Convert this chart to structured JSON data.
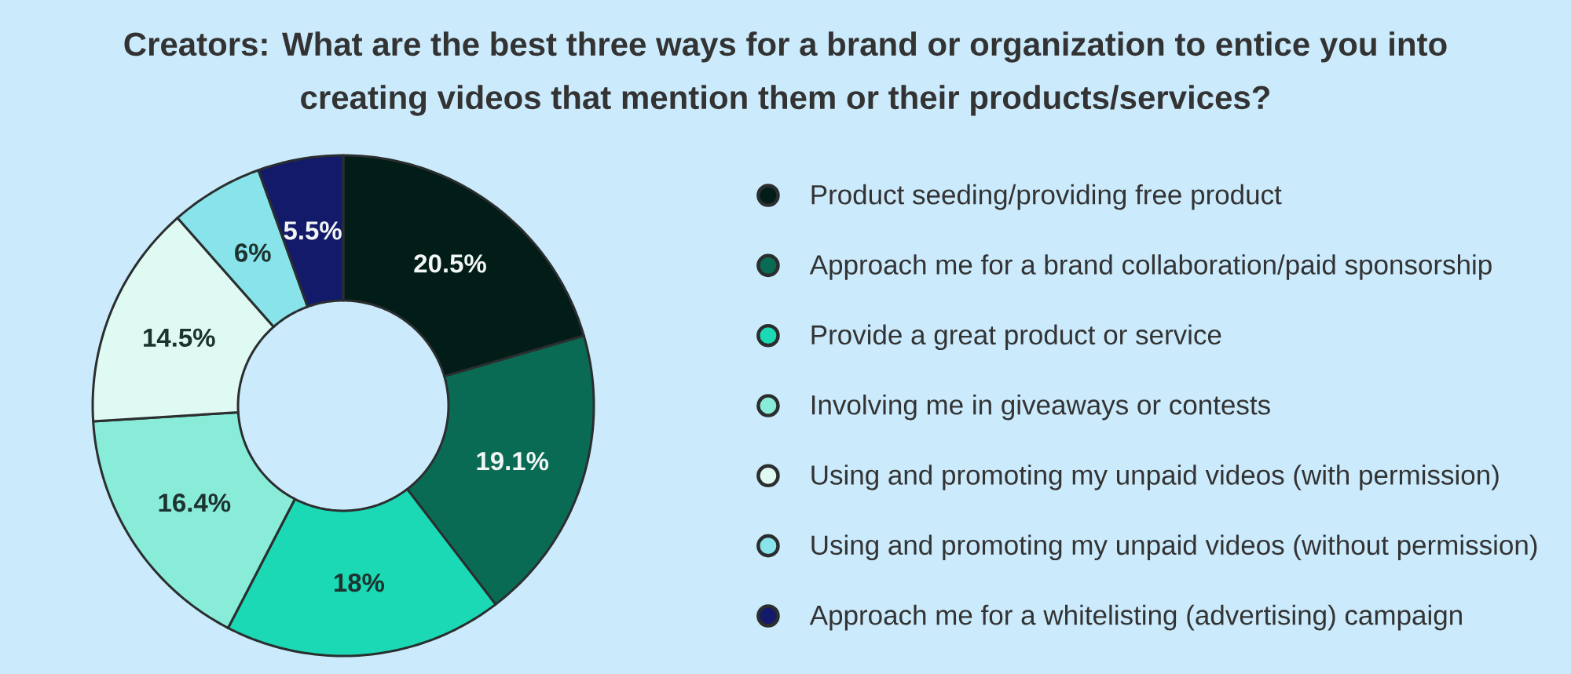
{
  "chart_data": {
    "type": "donut",
    "title": "Creators: What are the best three ways for a brand or organization to entice you into creating videos that mention them or their products/services?",
    "categories": [
      "Product seeding/providing free product",
      "Approach me for a brand collaboration/paid sponsorship",
      "Provide a great product or service",
      "Involving me in giveaways or contests",
      "Using and promoting my unpaid videos (with permission)",
      "Using and promoting my unpaid videos (without permission)",
      "Approach me for a whitelisting (advertising) campaign"
    ],
    "values": [
      20.5,
      19.1,
      18,
      16.4,
      14.5,
      6,
      5.5
    ],
    "colors": [
      "#021c17",
      "#0a6b55",
      "#1cd9b5",
      "#88ecd8",
      "#dff9f3",
      "#88e4ea",
      "#141a6a"
    ],
    "value_labels": [
      "20.5%",
      "19.1%",
      "18%",
      "16.4%",
      "14.5%",
      "6%",
      "5.5%"
    ],
    "legend": "right"
  }
}
